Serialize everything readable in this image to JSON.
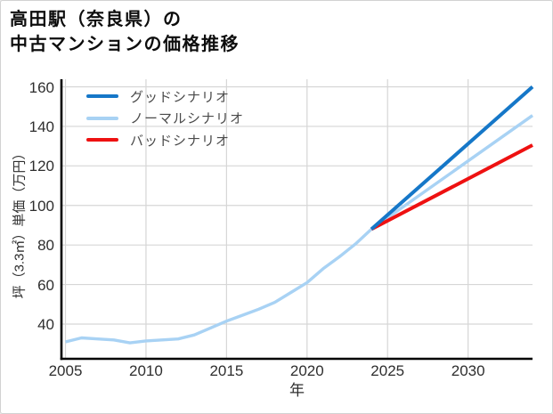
{
  "card": {
    "title_line1": "高田駅（奈良県）の",
    "title_line2": "中古マンションの価格推移"
  },
  "chart_data": {
    "type": "line",
    "title": "高田駅（奈良県）の中古マンションの価格推移",
    "xlabel": "年",
    "ylabel": "坪（3.3㎡）単価（万円）",
    "x_ticks": [
      2005,
      2010,
      2015,
      2020,
      2025,
      2030
    ],
    "y_ticks": [
      40,
      60,
      80,
      100,
      120,
      140,
      160
    ],
    "xlim": [
      2004.75,
      2034
    ],
    "ylim": [
      22,
      164
    ],
    "grid": true,
    "legend_position": "upper-left",
    "colors": {
      "good": "#1577c8",
      "normal": "#a8d2f4",
      "bad": "#ee1111",
      "gridline": "#d6d6d6",
      "axis": "#000000"
    },
    "series": [
      {
        "name": "グッドシナリオ",
        "color": "#1577c8",
        "x": [
          2024,
          2034
        ],
        "y": [
          88,
          160
        ]
      },
      {
        "name": "ノーマルシナリオ",
        "color": "#a8d2f4",
        "x": [
          2005,
          2006,
          2007,
          2008,
          2009,
          2010,
          2011,
          2012,
          2013,
          2014,
          2015,
          2016,
          2017,
          2018,
          2019,
          2020,
          2021,
          2022,
          2023,
          2024,
          2034
        ],
        "y": [
          31,
          33,
          32.5,
          32,
          30.5,
          31.5,
          32,
          32.5,
          34.5,
          38,
          41.5,
          44.5,
          47.5,
          51,
          56,
          61,
          68,
          74,
          80.5,
          88,
          145.5
        ]
      },
      {
        "name": "バッドシナリオ",
        "color": "#ee1111",
        "x": [
          2024,
          2034
        ],
        "y": [
          88,
          130.5
        ]
      }
    ]
  }
}
